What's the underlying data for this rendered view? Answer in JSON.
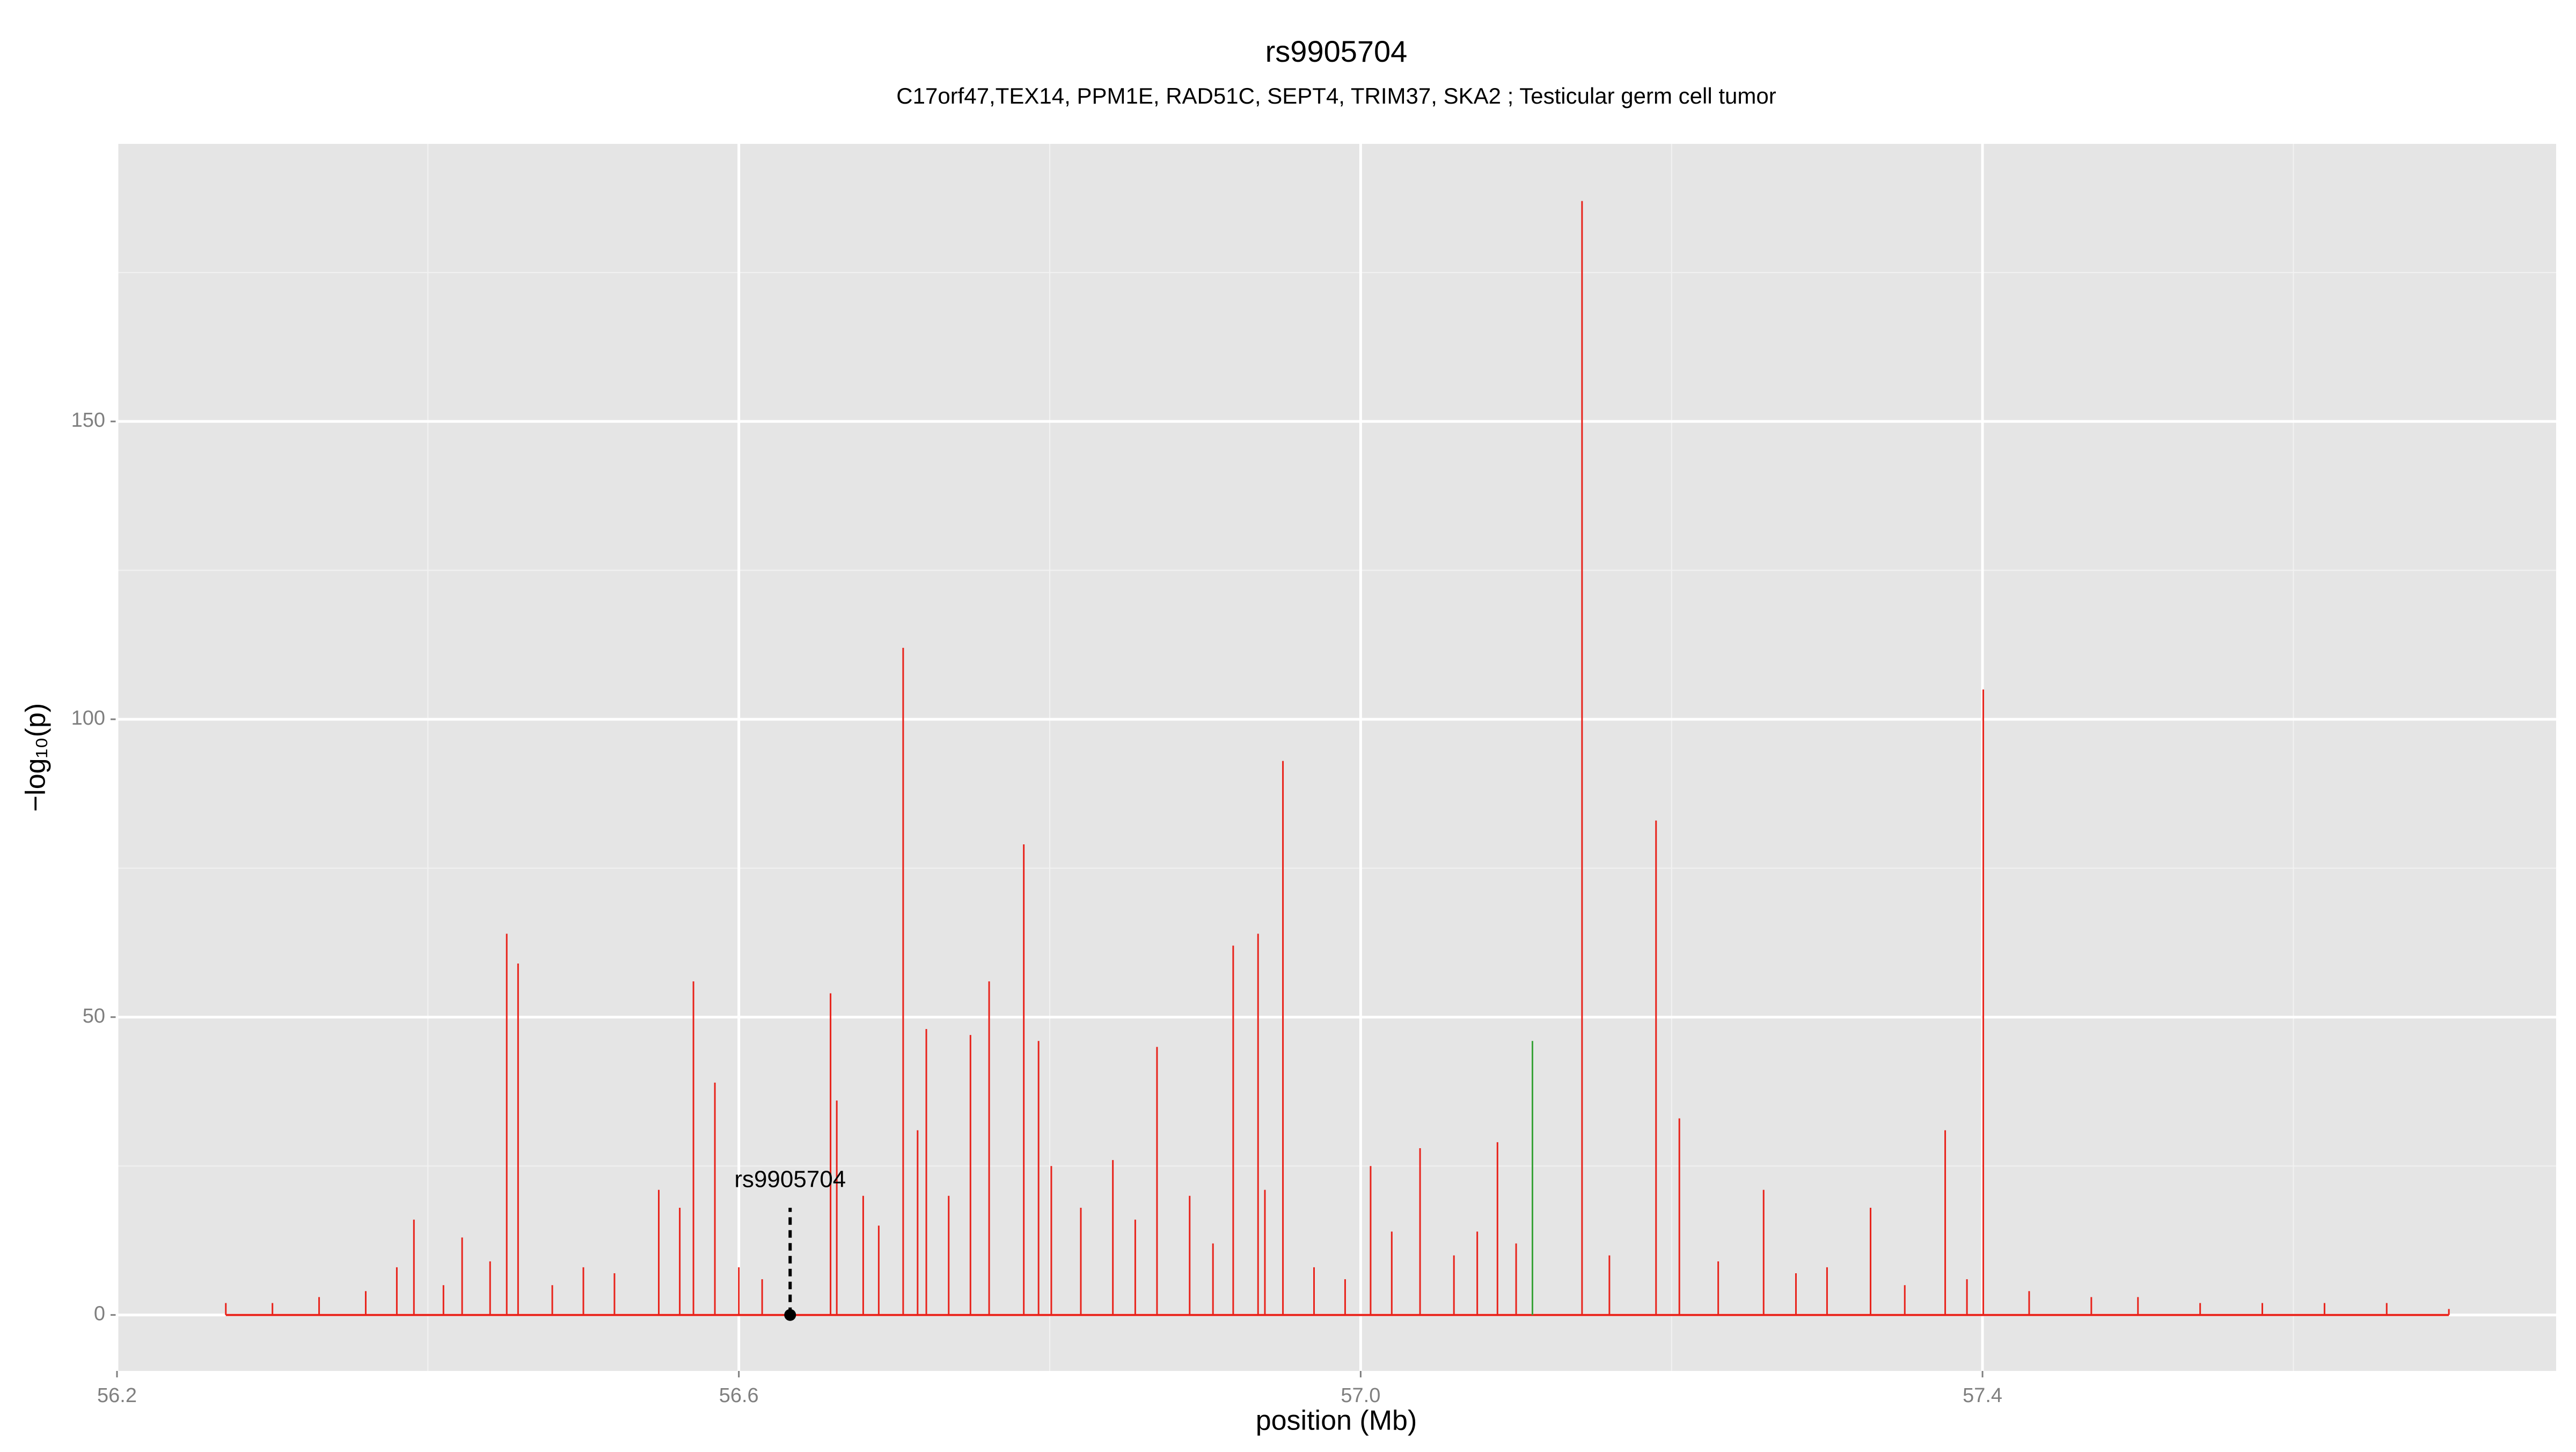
{
  "chart_data": {
    "type": "spike",
    "title": "rs9905704",
    "subtitle": "C17orf47,TEX14, PPM1E, RAD51C, SEPT4, TRIM37, SKA2 ; Testicular germ cell tumor",
    "xlabel": "position (Mb)",
    "ylabel": "−log₁₀(p)",
    "xlim": [
      56.2,
      57.769
    ],
    "ylim": [
      -9.4,
      196.6
    ],
    "xticks": [
      {
        "value": 56.2,
        "label": "56.2"
      },
      {
        "value": 56.6,
        "label": "56.6"
      },
      {
        "value": 57,
        "label": "57.0"
      },
      {
        "value": 57.4,
        "label": "57.4"
      }
    ],
    "yticks": [
      0,
      50,
      100,
      150
    ],
    "x_minor_grid": [
      56.4,
      56.8,
      57.2,
      57.6
    ],
    "y_minor_grid": [
      25,
      75,
      125,
      175
    ],
    "grid": true,
    "color": "#e8231b",
    "x": [
      56.27,
      56.3,
      56.33,
      56.36,
      56.38,
      56.391,
      56.41,
      56.422,
      56.44,
      56.4507,
      56.458,
      56.48,
      56.5,
      56.52,
      56.5485,
      56.562,
      56.5708,
      56.5846,
      56.6,
      56.615,
      56.659,
      56.663,
      56.68,
      56.69,
      56.7057,
      56.715,
      56.7206,
      56.735,
      56.749,
      56.761,
      56.7833,
      56.7928,
      56.801,
      56.82,
      56.8406,
      56.855,
      56.869,
      56.89,
      56.905,
      56.918,
      56.934,
      56.9384,
      56.95,
      56.97,
      56.99,
      57.0064,
      57.02,
      57.0382,
      57.06,
      57.075,
      57.088,
      57.1,
      57.1424,
      57.16,
      57.19,
      57.205,
      57.23,
      57.2592,
      57.28,
      57.3,
      57.328,
      57.35,
      57.376,
      57.39,
      57.4005,
      57.43,
      57.47,
      57.5,
      57.54,
      57.58,
      57.62,
      57.66,
      57.7
    ],
    "values": [
      2,
      2,
      3,
      4,
      8,
      16,
      5,
      13,
      9,
      64,
      59,
      5,
      8,
      7,
      21,
      18,
      56,
      39,
      8,
      6,
      54,
      36,
      20,
      15,
      112,
      31,
      48,
      20,
      47,
      56,
      79,
      46,
      25,
      18,
      26,
      16,
      45,
      20,
      12,
      62,
      64,
      21,
      93,
      8,
      6,
      25,
      14,
      28,
      10,
      14,
      29,
      12,
      187,
      10,
      83,
      33,
      9,
      21,
      7,
      8,
      18,
      5,
      31,
      6,
      105,
      4,
      3,
      3,
      2,
      2,
      2,
      2,
      1
    ],
    "highlight": {
      "x": 57.1105,
      "value": 46,
      "color": "#3aa33a"
    },
    "annotation": {
      "label": "rs9905704",
      "x": 56.633,
      "value": 18
    }
  }
}
